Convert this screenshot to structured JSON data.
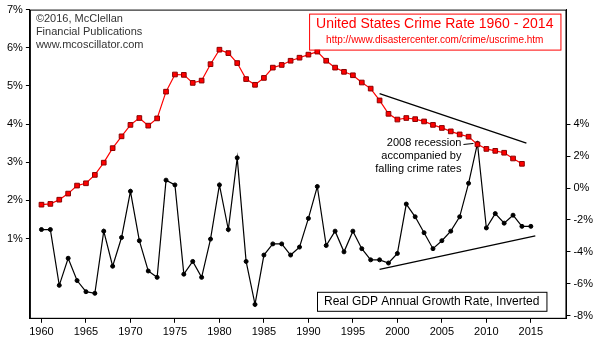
{
  "chart_data": {
    "type": "line",
    "title": "United States Crime Rate 1960 - 2014",
    "subtitle": "http://www.disastercenter.com/crime/uscrime.htm",
    "annotations": [
      {
        "text": [
          "©2016, McClellan",
          "Financial Publications",
          "www.mcoscillator.com"
        ]
      },
      {
        "text": [
          "2008 recession",
          "accompanied by",
          "falling crime rates"
        ],
        "x": 2009
      }
    ],
    "x": [
      1960,
      1961,
      1962,
      1963,
      1964,
      1965,
      1966,
      1967,
      1968,
      1969,
      1970,
      1971,
      1972,
      1973,
      1974,
      1975,
      1976,
      1977,
      1978,
      1979,
      1980,
      1981,
      1982,
      1983,
      1984,
      1985,
      1986,
      1987,
      1988,
      1989,
      1990,
      1991,
      1992,
      1993,
      1994,
      1995,
      1996,
      1997,
      1998,
      1999,
      2000,
      2001,
      2002,
      2003,
      2004,
      2005,
      2006,
      2007,
      2008,
      2009,
      2010,
      2011,
      2012,
      2013,
      2014,
      2015
    ],
    "xlim": [
      1958.7,
      2019
    ],
    "xticks": [
      1960,
      1965,
      1970,
      1975,
      1980,
      1985,
      1990,
      1995,
      2000,
      2005,
      2010,
      2015
    ],
    "ylim": [
      -1.1,
      7
    ],
    "yticks": [
      {
        "value": 1,
        "label": "1%"
      },
      {
        "value": 2,
        "label": "2%"
      },
      {
        "value": 3,
        "label": "3%"
      },
      {
        "value": 4,
        "label": "4%"
      },
      {
        "value": 5,
        "label": "5%"
      },
      {
        "value": 6,
        "label": "6%"
      },
      {
        "value": 7,
        "label": "7%"
      }
    ],
    "y2lim": [
      -8.2,
      11.2
    ],
    "y2ticks": [
      {
        "value": -8,
        "label": "-8%"
      },
      {
        "value": -6,
        "label": "-6%"
      },
      {
        "value": -4,
        "label": "-4%"
      },
      {
        "value": -2,
        "label": "-2%"
      },
      {
        "value": 0,
        "label": "0%"
      },
      {
        "value": 2,
        "label": "2%"
      },
      {
        "value": 4,
        "label": "4%"
      }
    ],
    "grid": false,
    "series": [
      {
        "color": "#ff0000",
        "marker": "square",
        "values": [
          1.89,
          1.91,
          2.02,
          2.18,
          2.39,
          2.45,
          2.67,
          2.99,
          3.37,
          3.68,
          3.98,
          4.16,
          3.96,
          4.15,
          4.85,
          5.3,
          5.29,
          5.08,
          5.14,
          5.57,
          5.95,
          5.86,
          5.6,
          5.18,
          5.03,
          5.21,
          5.48,
          5.55,
          5.66,
          5.74,
          5.82,
          5.9,
          5.66,
          5.48,
          5.37,
          5.28,
          5.09,
          4.93,
          4.62,
          4.27,
          4.12,
          4.16,
          4.13,
          4.07,
          3.98,
          3.9,
          3.81,
          3.73,
          3.67,
          3.47,
          3.35,
          3.3,
          3.25,
          3.1,
          2.96,
          null
        ]
      },
      {
        "name": "Real GDP Annual Growth Rate, Inverted",
        "color": "#000000",
        "marker": "circle",
        "axis": "y2",
        "values": [
          -2.6,
          -2.6,
          -6.1,
          -4.4,
          -5.8,
          -6.5,
          -6.6,
          -2.7,
          -4.9,
          -3.1,
          -0.2,
          -3.3,
          -5.2,
          -5.6,
          0.5,
          0.2,
          -5.4,
          -4.6,
          -5.6,
          -3.2,
          0.2,
          -2.6,
          1.9,
          -4.6,
          -7.3,
          -4.2,
          -3.5,
          -3.5,
          -4.2,
          -3.7,
          -1.9,
          0.1,
          -3.6,
          -2.7,
          -4.0,
          -2.7,
          -3.8,
          -4.5,
          -4.5,
          -4.7,
          -4.1,
          -1.0,
          -1.8,
          -2.8,
          -3.8,
          -3.3,
          -2.7,
          -1.8,
          0.3,
          2.8,
          -2.5,
          -1.6,
          -2.2,
          -1.7,
          -2.4,
          -2.4
        ]
      }
    ],
    "trend_lines": [
      {
        "x": [
          1998,
          2014.5
        ],
        "values": [
          4.8,
          3.5
        ],
        "color": "#000000"
      },
      {
        "x": [
          1998,
          2015.5
        ],
        "values": [
          -5.1,
          -3.0
        ],
        "color": "#000000",
        "axis": "y2"
      }
    ]
  }
}
